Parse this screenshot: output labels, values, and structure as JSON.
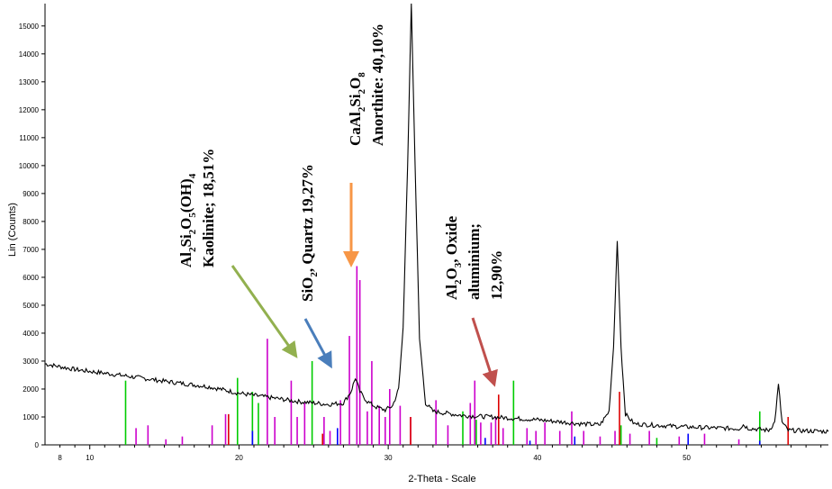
{
  "chart_data": {
    "type": "line",
    "xlabel": "2-Theta - Scale",
    "ylabel": "Lin (Counts)",
    "xlim": [
      7,
      59.5
    ],
    "ylim": [
      0,
      15800
    ],
    "x_ticks": [
      8,
      10,
      20,
      30,
      40,
      50
    ],
    "y_ticks": [
      0,
      1000,
      2000,
      3000,
      4000,
      5000,
      6000,
      7000,
      8000,
      9000,
      10000,
      11000,
      12000,
      13000,
      14000,
      15000
    ],
    "baseline": [
      [
        7,
        2900
      ],
      [
        9,
        2700
      ],
      [
        12,
        2500
      ],
      [
        15,
        2280
      ],
      [
        18,
        2080
      ],
      [
        20,
        1850
      ],
      [
        22,
        1700
      ],
      [
        24,
        1550
      ],
      [
        25,
        1500
      ],
      [
        26,
        1450
      ],
      [
        27,
        1500
      ],
      [
        27.5,
        1900
      ],
      [
        27.8,
        2400
      ],
      [
        28.1,
        1900
      ],
      [
        28.6,
        1550
      ],
      [
        29.2,
        1350
      ],
      [
        29.8,
        1250
      ],
      [
        30.3,
        1400
      ],
      [
        30.7,
        2000
      ],
      [
        31.0,
        4200
      ],
      [
        31.3,
        10000
      ],
      [
        31.55,
        15800
      ],
      [
        31.8,
        10000
      ],
      [
        32.1,
        3800
      ],
      [
        32.5,
        1500
      ],
      [
        33,
        1200
      ],
      [
        35,
        1050
      ],
      [
        37,
        1000
      ],
      [
        40,
        900
      ],
      [
        43,
        750
      ],
      [
        44.2,
        720
      ],
      [
        44.8,
        1200
      ],
      [
        45.1,
        3500
      ],
      [
        45.35,
        7300
      ],
      [
        45.6,
        3500
      ],
      [
        45.9,
        1100
      ],
      [
        46.5,
        750
      ],
      [
        50,
        640
      ],
      [
        53.5,
        580
      ],
      [
        53.8,
        720
      ],
      [
        54.1,
        600
      ],
      [
        55.5,
        520
      ],
      [
        55.9,
        800
      ],
      [
        56.15,
        2150
      ],
      [
        56.4,
        800
      ],
      [
        56.8,
        520
      ],
      [
        59.5,
        480
      ]
    ],
    "series": [
      {
        "name": "Kaolinite",
        "color": "#00cc00",
        "peaks": [
          [
            12.4,
            2300
          ],
          [
            19.9,
            2400
          ],
          [
            20.9,
            1900
          ],
          [
            21.3,
            1500
          ],
          [
            24.9,
            3000
          ],
          [
            35.0,
            1200
          ],
          [
            35.9,
            900
          ],
          [
            38.4,
            2300
          ],
          [
            45.6,
            700
          ],
          [
            48.0,
            250
          ],
          [
            54.9,
            1200
          ]
        ]
      },
      {
        "name": "Quartz",
        "color": "#0000ff",
        "peaks": [
          [
            20.9,
            500
          ],
          [
            26.6,
            600
          ],
          [
            36.5,
            250
          ],
          [
            39.5,
            150
          ],
          [
            42.5,
            300
          ],
          [
            50.1,
            400
          ],
          [
            54.9,
            150
          ],
          [
            59.9,
            200
          ]
        ]
      },
      {
        "name": "Anorthite",
        "color": "#cc00cc",
        "peaks": [
          [
            13.1,
            600
          ],
          [
            13.9,
            700
          ],
          [
            15.1,
            200
          ],
          [
            16.2,
            300
          ],
          [
            18.2,
            700
          ],
          [
            19.1,
            1100
          ],
          [
            21.9,
            3800
          ],
          [
            22.4,
            1000
          ],
          [
            23.5,
            2300
          ],
          [
            23.9,
            1000
          ],
          [
            24.4,
            1500
          ],
          [
            25.7,
            1000
          ],
          [
            26.1,
            500
          ],
          [
            26.8,
            1600
          ],
          [
            27.4,
            3900
          ],
          [
            27.9,
            6400
          ],
          [
            28.1,
            5900
          ],
          [
            28.6,
            1200
          ],
          [
            28.9,
            3000
          ],
          [
            29.4,
            1400
          ],
          [
            29.8,
            1000
          ],
          [
            30.1,
            2000
          ],
          [
            30.8,
            1400
          ],
          [
            31.5,
            1000
          ],
          [
            33.2,
            1600
          ],
          [
            34.0,
            700
          ],
          [
            35.5,
            1500
          ],
          [
            35.8,
            2300
          ],
          [
            36.2,
            800
          ],
          [
            36.9,
            800
          ],
          [
            37.2,
            1000
          ],
          [
            37.7,
            600
          ],
          [
            39.3,
            600
          ],
          [
            39.9,
            500
          ],
          [
            40.5,
            800
          ],
          [
            41.5,
            500
          ],
          [
            42.3,
            1200
          ],
          [
            43.1,
            500
          ],
          [
            44.2,
            300
          ],
          [
            45.2,
            500
          ],
          [
            46.2,
            400
          ],
          [
            47.5,
            500
          ],
          [
            49.5,
            300
          ],
          [
            51.2,
            400
          ],
          [
            53.5,
            200
          ]
        ]
      },
      {
        "name": "Aluminium Oxide",
        "color": "#dd0000",
        "peaks": [
          [
            19.3,
            1100
          ],
          [
            25.6,
            400
          ],
          [
            31.5,
            1000
          ],
          [
            37.4,
            1800
          ],
          [
            45.5,
            1900
          ],
          [
            56.8,
            1000
          ]
        ]
      }
    ],
    "annotations": [
      {
        "lines": [
          {
            "text": "Al",
            "sub": "2",
            "rest": "Si",
            "sub2": "2",
            "rest2": "O",
            "sub3": "5",
            "rest3": "(OH)",
            "sub4": "4"
          },
          {
            "text": "Kaolinite; 18,51%"
          }
        ],
        "arrow_color": "#92b04f"
      },
      {
        "lines": [
          {
            "text": "SiO",
            "sub": "2",
            "rest": ", Quartz 19,27%"
          }
        ],
        "arrow_color": "#4a7ebb"
      },
      {
        "lines": [
          {
            "text": "CaAl",
            "sub": "2",
            "rest": "Si",
            "sub2": "2",
            "rest2": "O",
            "sub3": "8"
          },
          {
            "text": "Anorthite: 40,10%"
          }
        ],
        "arrow_color": "#f79646"
      },
      {
        "lines": [
          {
            "text": "Al",
            "sub": "2",
            "rest": "O",
            "sub2": "3",
            "rest2": ", Oxide"
          },
          {
            "text": "aluminium;"
          },
          {
            "text": "12,90%"
          }
        ],
        "arrow_color": "#c0504d"
      }
    ]
  },
  "labels": {
    "kaolinite_formula_1": "Al",
    "kaolinite_formula_sub1": "2",
    "kaolinite_formula_2": "Si",
    "kaolinite_formula_sub2": "2",
    "kaolinite_formula_3": "O",
    "kaolinite_formula_sub3": "5",
    "kaolinite_formula_4": "(OH)",
    "kaolinite_formula_sub4": "4",
    "kaolinite_line2": "Kaolinite; 18,51%",
    "quartz_1": "SiO",
    "quartz_sub": "2",
    "quartz_2": ", Quartz 19,27%",
    "anorthite_1": "CaAl",
    "anorthite_sub1": "2",
    "anorthite_2": "Si",
    "anorthite_sub2": "2",
    "anorthite_3": "O",
    "anorthite_sub3": "8",
    "anorthite_line2": "Anorthite: 40,10%",
    "alumina_1": "Al",
    "alumina_sub1": "2",
    "alumina_2": "O",
    "alumina_sub2": "3",
    "alumina_3": ", Oxide",
    "alumina_line2": "aluminium;",
    "alumina_line3": "12,90%"
  }
}
